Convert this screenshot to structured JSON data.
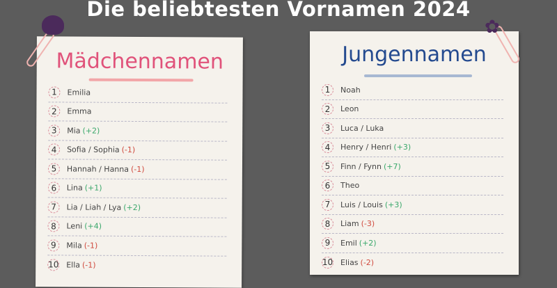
{
  "title": "Die beliebtesten Vornamen 2024",
  "colors": {
    "background": "#5c5c5c",
    "girls_accent": "#e0527a",
    "boys_accent": "#244a8f",
    "increase": "#3aa86b",
    "decrease": "#d04a3e"
  },
  "girls": {
    "heading": "Mädchennamen",
    "items": [
      {
        "rank": "1",
        "name": "Emilia",
        "change": ""
      },
      {
        "rank": "2",
        "name": "Emma",
        "change": ""
      },
      {
        "rank": "3",
        "name": "Mia",
        "change": "(+2)"
      },
      {
        "rank": "4",
        "name": "Sofia / Sophia",
        "change": "(-1)"
      },
      {
        "rank": "5",
        "name": "Hannah / Hanna",
        "change": "(-1)"
      },
      {
        "rank": "6",
        "name": "Lina",
        "change": "(+1)"
      },
      {
        "rank": "7",
        "name": "Lia / Liah / Lya",
        "change": "(+2)"
      },
      {
        "rank": "8",
        "name": "Leni",
        "change": "(+4)"
      },
      {
        "rank": "9",
        "name": "Mila",
        "change": "(-1)"
      },
      {
        "rank": "10",
        "name": "Ella",
        "change": "(-1)"
      }
    ]
  },
  "boys": {
    "heading": "Jungennamen",
    "items": [
      {
        "rank": "1",
        "name": "Noah",
        "change": ""
      },
      {
        "rank": "2",
        "name": "Leon",
        "change": ""
      },
      {
        "rank": "3",
        "name": "Luca / Luka",
        "change": ""
      },
      {
        "rank": "4",
        "name": "Henry / Henri",
        "change": "(+3)"
      },
      {
        "rank": "5",
        "name": "Finn / Fynn",
        "change": "(+7)"
      },
      {
        "rank": "6",
        "name": "Theo",
        "change": ""
      },
      {
        "rank": "7",
        "name": "Luis / Louis",
        "change": "(+3)"
      },
      {
        "rank": "8",
        "name": "Liam",
        "change": "(-3)"
      },
      {
        "rank": "9",
        "name": "Emil",
        "change": "(+2)"
      },
      {
        "rank": "10",
        "name": "Elias",
        "change": "(-2)"
      }
    ]
  }
}
